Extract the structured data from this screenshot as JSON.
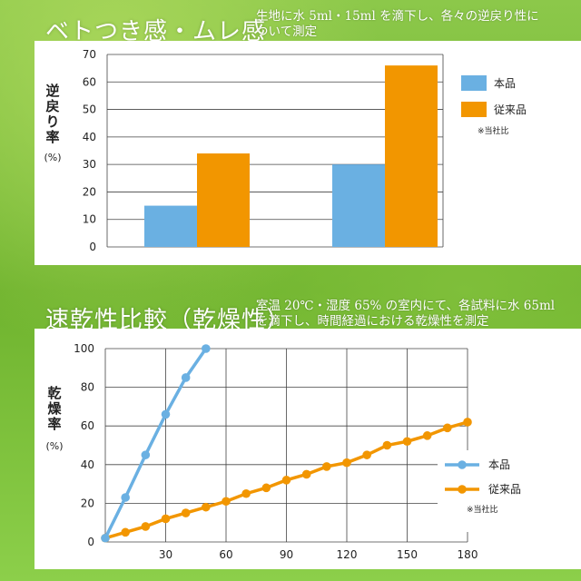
{
  "section1": {
    "title": "ベトつき感・ムレ感",
    "note_line1": "生地に水 5ml・15ml を滴下し、各々の逆戻り性に",
    "note_line2": "ついて測定"
  },
  "section2": {
    "title": "速乾性比較（乾燥性）",
    "note_line1": "室温 20℃・湿度 65% の室内にて、各試料に水 65ml",
    "note_line2": "を滴下し、時間経過における乾燥性を測定"
  },
  "colors": {
    "product": "#6ab0e2",
    "conventional": "#f29600"
  },
  "chart_data": [
    {
      "type": "bar",
      "categories": [
        "",
        ""
      ],
      "series": [
        {
          "name": "本品",
          "values": [
            15,
            30
          ]
        },
        {
          "name": "従来品",
          "values": [
            34,
            66
          ]
        }
      ],
      "ylabel": "逆戻り率",
      "ylabel_unit": "(%)",
      "ylim": [
        0,
        70
      ],
      "yticks": [
        0,
        10,
        20,
        30,
        40,
        50,
        60,
        70
      ],
      "grid": true,
      "legend_position": "top-right",
      "footnote": "※当社比"
    },
    {
      "type": "line",
      "series": [
        {
          "name": "本品",
          "x": [
            0,
            10,
            20,
            30,
            40,
            50
          ],
          "y": [
            2,
            23,
            45,
            66,
            85,
            100
          ]
        },
        {
          "name": "従来品",
          "x": [
            0,
            10,
            20,
            30,
            40,
            50,
            60,
            70,
            80,
            90,
            100,
            110,
            120,
            130,
            140,
            150,
            160,
            170,
            180
          ],
          "y": [
            2,
            5,
            8,
            12,
            15,
            18,
            21,
            25,
            28,
            32,
            35,
            39,
            41,
            45,
            50,
            52,
            55,
            59,
            62
          ]
        }
      ],
      "ylabel": "乾燥率",
      "ylabel_unit": "(%)",
      "xlim": [
        0,
        180
      ],
      "ylim": [
        0,
        100
      ],
      "xticks": [
        0,
        30,
        60,
        90,
        120,
        150,
        180
      ],
      "yticks": [
        0,
        20,
        40,
        60,
        80,
        100
      ],
      "grid": true,
      "legend_position": "bottom-right",
      "footnote": "※当社比"
    }
  ]
}
